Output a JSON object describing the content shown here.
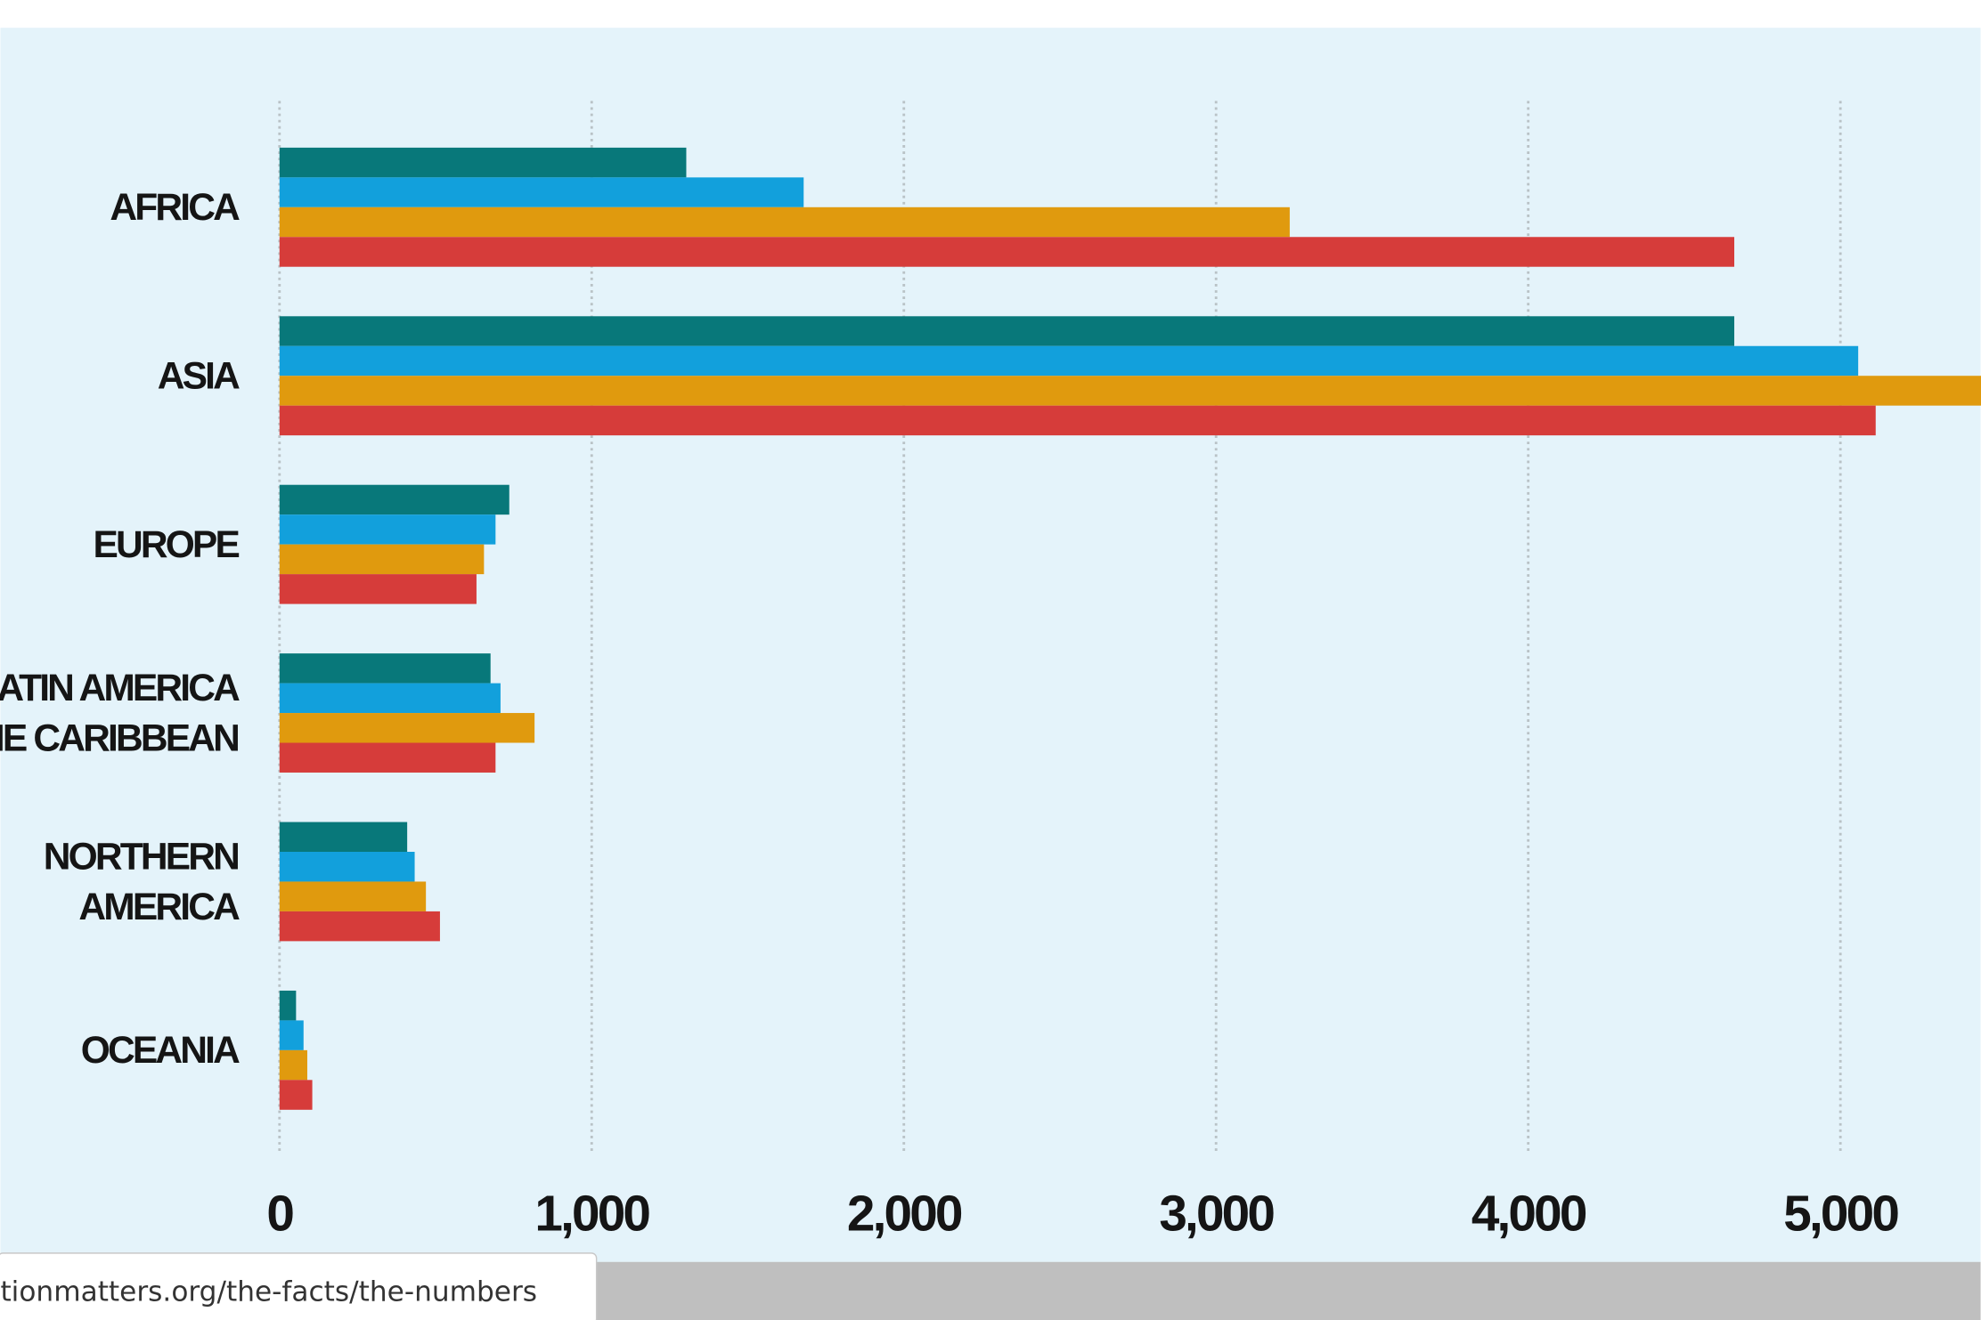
{
  "chart_data": {
    "type": "hbar",
    "categories": [
      [
        "AFRICA"
      ],
      [
        "ASIA"
      ],
      [
        "EUROPE"
      ],
      [
        "LATIN AMERICA",
        "THE CARIBBEAN"
      ],
      [
        "NORTHERN",
        "AMERICA"
      ],
      [
        "OCEANIA"
      ]
    ],
    "series": [
      {
        "color": "#08787a",
        "values": [
          1303,
          4660,
          736,
          676,
          409,
          53
        ]
      },
      {
        "color": "#12a0dc",
        "values": [
          1679,
          5057,
          692,
          708,
          433,
          77
        ]
      },
      {
        "color": "#e09a0e",
        "values": [
          3236,
          5500,
          655,
          817,
          469,
          89
        ]
      },
      {
        "color": "#d63c3a",
        "values": [
          4660,
          5113,
          631,
          692,
          514,
          105
        ]
      }
    ],
    "xlim": [
      0,
      5450
    ],
    "xticks": [
      0,
      {
        "value": 1000,
        "label": "1,000"
      },
      {
        "value": 2000,
        "label": "2,000"
      },
      {
        "value": 3000,
        "label": "3,000"
      },
      {
        "value": 4000,
        "label": "4,000"
      },
      {
        "value": 5000,
        "label": "5,000"
      }
    ],
    "grid": true
  },
  "status_bar": {
    "url": "tionmatters.org/the-facts/the-numbers"
  }
}
